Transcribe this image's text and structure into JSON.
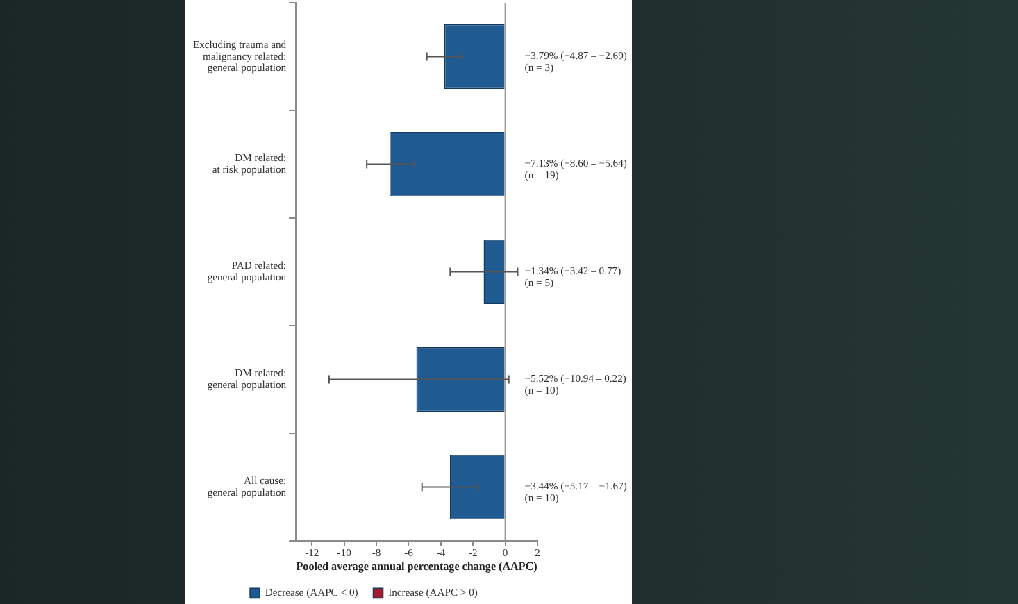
{
  "chart_data": {
    "type": "bar",
    "orientation": "horizontal",
    "stacked": true,
    "categories": [
      "Excluding trauma and\nmalignancy related:\ngeneral population",
      "DM related:\nat risk population",
      "PAD related:\ngeneral population",
      "DM related:\ngeneral population",
      "All cause:\ngeneral population"
    ],
    "series": [
      {
        "name": "Decrease (AAPC < 0)",
        "color": "#1f5a91",
        "values": [
          -3.79,
          -7.13,
          -1.34,
          -5.52,
          -3.44
        ],
        "errors": [
          [
            -4.87,
            -2.69
          ],
          [
            -8.6,
            -5.64
          ],
          [
            -3.42,
            0.77
          ],
          [
            -10.94,
            0.22
          ],
          [
            -5.17,
            -1.67
          ]
        ],
        "value_labels": [
          "−3.79% (−4.87 – −2.69)\n(n = 3)",
          "−7.13% (−8.60 – −5.64)\n(n = 19)",
          "−1.34% (−3.42 – 0.77)\n(n = 5)",
          "−5.52% (−10.94 – 0.22)\n(n = 10)",
          "−3.44% (−5.17 – −1.67)\n(n = 10)"
        ]
      },
      {
        "name": "Increase (AAPC > 0)",
        "color": "#a51d2d",
        "values": [
          null,
          null,
          null,
          null,
          null
        ]
      }
    ],
    "xlim": [
      -13,
      2
    ],
    "xticks": [
      -12,
      -10,
      -8,
      -6,
      -4,
      -2,
      0,
      2
    ],
    "xlabel": "Pooled average annual percentage change (AAPC)",
    "legend": "bottom",
    "ref_lines": [
      {
        "axis": "x",
        "value": 0,
        "color": "#9a9a9a"
      }
    ]
  }
}
